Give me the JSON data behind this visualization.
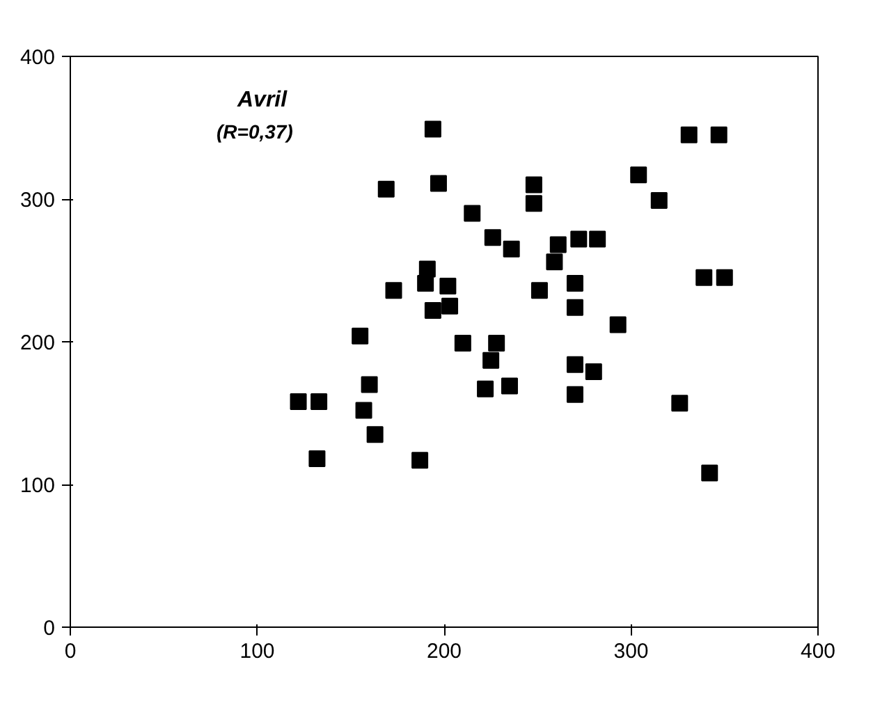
{
  "chart_data": {
    "type": "scatter",
    "title": "Avril",
    "subtitle": "(R=0,37)",
    "x": [
      194,
      169,
      197,
      215,
      191,
      190,
      202,
      173,
      194,
      203,
      155,
      210,
      160,
      122,
      133,
      157,
      163,
      132,
      187,
      331,
      347,
      304,
      315,
      248,
      248,
      226,
      236,
      261,
      272,
      282,
      259,
      339,
      350,
      251,
      270,
      270,
      293,
      228,
      225,
      222,
      235,
      270,
      280,
      270,
      326,
      342
    ],
    "values": [
      349,
      307,
      311,
      290,
      251,
      241,
      239,
      236,
      222,
      225,
      204,
      199,
      170,
      158,
      158,
      152,
      135,
      118,
      117,
      345,
      345,
      317,
      299,
      310,
      297,
      273,
      265,
      268,
      272,
      272,
      256,
      245,
      245,
      236,
      241,
      224,
      212,
      199,
      187,
      167,
      169,
      184,
      179,
      163,
      157,
      108
    ],
    "color": "#000000",
    "marker": "square",
    "xlim": [
      0,
      400
    ],
    "ylim": [
      0,
      400
    ],
    "xticks": [
      0,
      100,
      200,
      300,
      400
    ],
    "yticks": [
      0,
      100,
      200,
      300,
      400
    ],
    "grid": false
  }
}
